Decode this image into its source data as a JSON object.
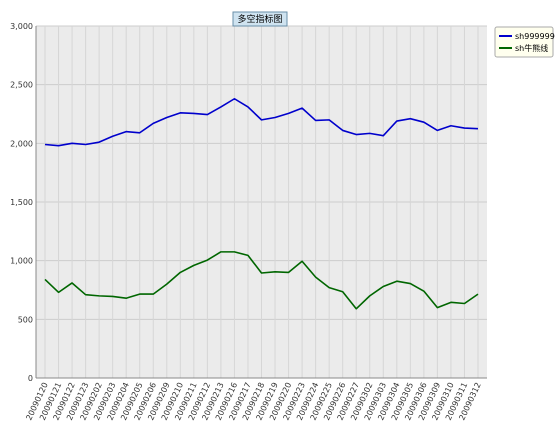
{
  "chart_data": {
    "type": "line",
    "title": "多空指标图",
    "xlabel": "",
    "ylabel": "",
    "ylim": [
      0,
      3000
    ],
    "yticks": [
      0,
      500,
      1000,
      1500,
      2000,
      2500,
      3000
    ],
    "ytick_labels": [
      "0",
      "500",
      "1,000",
      "1,500",
      "2,000",
      "2,500",
      "3,000"
    ],
    "grid": true,
    "legend_position": "top-right",
    "categories": [
      "20090120",
      "20090121",
      "20090122",
      "20090123",
      "20090202",
      "20090203",
      "20090204",
      "20090205",
      "20090206",
      "20090209",
      "20090210",
      "20090211",
      "20090212",
      "20090213",
      "20090216",
      "20090217",
      "20090218",
      "20090219",
      "20090220",
      "20090223",
      "20090224",
      "20090225",
      "20090226",
      "20090227",
      "20090302",
      "20090303",
      "20090304",
      "20090305",
      "20090306",
      "20090309",
      "20090310",
      "20090311",
      "20090312"
    ],
    "series": [
      {
        "name": "sh999999",
        "color": "#0000cc",
        "values": [
          1990,
          1980,
          2000,
          1990,
          2010,
          2060,
          2100,
          2090,
          2170,
          2220,
          2260,
          2255,
          2245,
          2310,
          2380,
          2310,
          2200,
          2220,
          2255,
          2300,
          2195,
          2200,
          2110,
          2075,
          2085,
          2065,
          2190,
          2210,
          2180,
          2110,
          2150,
          2130,
          2125
        ]
      },
      {
        "name": "sh牛熊线",
        "color": "#006600",
        "values": [
          840,
          730,
          810,
          710,
          700,
          695,
          680,
          715,
          715,
          800,
          900,
          960,
          1005,
          1075,
          1075,
          1045,
          895,
          905,
          900,
          995,
          860,
          770,
          735,
          590,
          700,
          780,
          825,
          805,
          740,
          600,
          645,
          635,
          715
        ]
      }
    ]
  }
}
